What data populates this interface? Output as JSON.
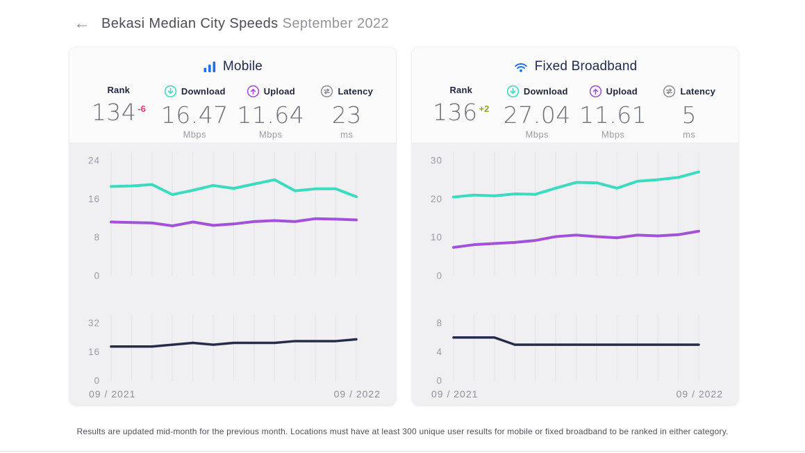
{
  "header": {
    "back_arrow": "←",
    "title": "Bekasi Median City Speeds",
    "subtitle": "September 2022"
  },
  "cards": [
    {
      "id": "mobile",
      "title": "Mobile",
      "icon": "mobile-signal-bars-icon",
      "stats": {
        "rank": {
          "label": "Rank",
          "value": "134",
          "change": "-6",
          "change_color": "#f1356d"
        },
        "download": {
          "label": "Download",
          "value": "16.47",
          "unit": "Mbps",
          "icon": "download-circle-arrow-icon",
          "icon_color": "#3cdbc0"
        },
        "upload": {
          "label": "Upload",
          "value": "11.64",
          "unit": "Mbps",
          "icon": "upload-circle-arrow-icon",
          "icon_color": "#a251d8"
        },
        "latency": {
          "label": "Latency",
          "value": "23",
          "unit": "ms",
          "icon": "latency-circle-arrows-icon",
          "icon_color": "#8b8b96"
        }
      }
    },
    {
      "id": "fixed-broadband",
      "title": "Fixed Broadband",
      "icon": "wifi-icon",
      "stats": {
        "rank": {
          "label": "Rank",
          "value": "136",
          "change": "+2",
          "change_color": "#8aa62e"
        },
        "download": {
          "label": "Download",
          "value": "27.04",
          "unit": "Mbps",
          "icon": "download-circle-arrow-icon",
          "icon_color": "#3cdbc0"
        },
        "upload": {
          "label": "Upload",
          "value": "11.61",
          "unit": "Mbps",
          "icon": "upload-circle-arrow-icon",
          "icon_color": "#a251d8"
        },
        "latency": {
          "label": "Latency",
          "value": "5",
          "unit": "ms",
          "icon": "latency-circle-arrows-icon",
          "icon_color": "#8b8b96"
        }
      }
    }
  ],
  "chart_data": [
    {
      "id": "mobile-speeds",
      "type": "line",
      "title": "Mobile median speeds (Mbps), monthly 09/2021–09/2022",
      "n_points": 13,
      "x_first_label": "09 / 2021",
      "x_last_label": "09 / 2022",
      "ylim": [
        0,
        24
      ],
      "yticks": [
        24,
        16,
        8,
        0
      ],
      "grid": "vertical-monthly",
      "legend": "none",
      "series": [
        {
          "name": "Download",
          "color": "#3cdbc0",
          "values": [
            18.6,
            18.7,
            19.0,
            16.9,
            17.8,
            18.8,
            18.2,
            19.1,
            20.0,
            17.7,
            18.1,
            18.1,
            16.47
          ]
        },
        {
          "name": "Upload",
          "color": "#a251d8",
          "values": [
            11.2,
            11.1,
            11.0,
            10.4,
            11.2,
            10.5,
            10.8,
            11.3,
            11.5,
            11.3,
            11.9,
            11.8,
            11.64
          ]
        }
      ]
    },
    {
      "id": "mobile-latency",
      "type": "line",
      "title": "Mobile median latency (ms), monthly 09/2021–09/2022",
      "n_points": 13,
      "x_first_label": "09 / 2021",
      "x_last_label": "09 / 2022",
      "ylim": [
        0,
        32
      ],
      "yticks": [
        32,
        16,
        0
      ],
      "grid": "vertical-monthly",
      "legend": "none",
      "series": [
        {
          "name": "Latency",
          "color": "#242e49",
          "values": [
            19,
            19,
            19,
            20,
            21,
            20,
            21,
            21,
            21,
            22,
            22,
            22,
            23
          ]
        }
      ]
    },
    {
      "id": "fixed-broadband-speeds",
      "type": "line",
      "title": "Fixed broadband median speeds (Mbps), monthly 09/2021–09/2022",
      "n_points": 13,
      "x_first_label": "09 / 2021",
      "x_last_label": "09 / 2022",
      "ylim": [
        0,
        30
      ],
      "yticks": [
        30,
        20,
        10,
        0
      ],
      "grid": "vertical-monthly",
      "legend": "none",
      "series": [
        {
          "name": "Download",
          "color": "#3cdbc0",
          "values": [
            20.5,
            21.0,
            20.8,
            21.3,
            21.2,
            22.8,
            24.3,
            24.2,
            22.8,
            24.6,
            25.0,
            25.6,
            27.04
          ]
        },
        {
          "name": "Upload",
          "color": "#a251d8",
          "values": [
            7.4,
            8.1,
            8.4,
            8.7,
            9.2,
            10.2,
            10.6,
            10.2,
            9.9,
            10.6,
            10.4,
            10.7,
            11.61
          ]
        }
      ]
    },
    {
      "id": "fixed-broadband-latency",
      "type": "line",
      "title": "Fixed broadband median latency (ms), monthly 09/2021–09/2022",
      "n_points": 13,
      "x_first_label": "09 / 2021",
      "x_last_label": "09 / 2022",
      "ylim": [
        0,
        8
      ],
      "yticks": [
        8,
        4,
        0
      ],
      "grid": "vertical-monthly",
      "legend": "none",
      "series": [
        {
          "name": "Latency",
          "color": "#242e49",
          "values": [
            6,
            6,
            6,
            5,
            5,
            5,
            5,
            5,
            5,
            5,
            5,
            5,
            5
          ]
        }
      ]
    }
  ],
  "footer": {
    "note": "Results are updated mid-month for the previous month. Locations must have at least 300 unique user results for mobile or fixed broadband to be ranked in either category."
  },
  "colors": {
    "accent_blue": "#2270e8",
    "download_teal": "#3cdbc0",
    "upload_purple": "#a251d8",
    "latency_navy": "#242e49",
    "rank_down_red": "#f1356d",
    "rank_up_green": "#8aa62e",
    "chart_background": "#f0f0f2",
    "gridline": "#e3e3e8",
    "tick_text": "#9b9ba6"
  }
}
